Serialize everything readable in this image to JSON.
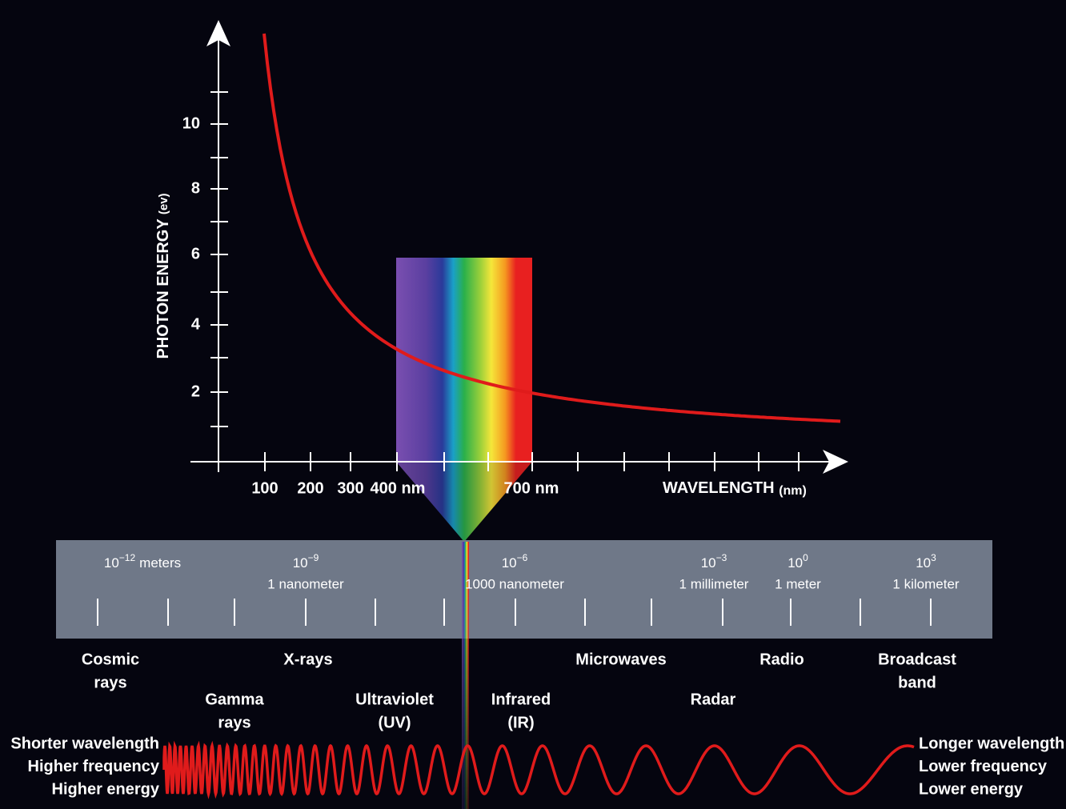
{
  "energy_axis": {
    "label": "PHOTON ENERGY",
    "unit": "(ev)",
    "ticks": [
      "10",
      "8",
      "6",
      "4",
      "2"
    ]
  },
  "wavelength_axis": {
    "label": "WAVELENGTH",
    "unit": "(nm)",
    "ticks": [
      "100",
      "200",
      "300",
      "400 nm",
      "700 nm"
    ]
  },
  "scale": [
    {
      "base": "10",
      "exponent": "−12",
      "name": "meters"
    },
    {
      "base": "10",
      "exponent": "−9",
      "name": "1 nanometer"
    },
    {
      "base": "10",
      "exponent": "−6",
      "name": "1000 nanometer"
    },
    {
      "base": "10",
      "exponent": "−3",
      "name": "1 millimeter"
    },
    {
      "base": "10",
      "exponent": "0",
      "name": "1 meter"
    },
    {
      "base": "10",
      "exponent": "3",
      "name": "1 kilometer"
    }
  ],
  "bands": [
    {
      "lines": [
        "Cosmic",
        "rays"
      ]
    },
    {
      "lines": [
        "X-rays"
      ]
    },
    {
      "lines": [
        "Microwaves"
      ]
    },
    {
      "lines": [
        "Radio"
      ]
    },
    {
      "lines": [
        "Broadcast",
        "band"
      ]
    },
    {
      "lines": [
        "Gamma",
        "rays"
      ]
    },
    {
      "lines": [
        "Ultraviolet",
        "(UV)"
      ]
    },
    {
      "lines": [
        "Infrared",
        "(IR)"
      ]
    },
    {
      "lines": [
        "Radar"
      ]
    }
  ],
  "left_notes": [
    "Shorter wavelength",
    "Higher frequency",
    "Higher energy"
  ],
  "right_notes": [
    "Longer wavelength",
    "Lower frequency",
    "Lower energy"
  ]
}
